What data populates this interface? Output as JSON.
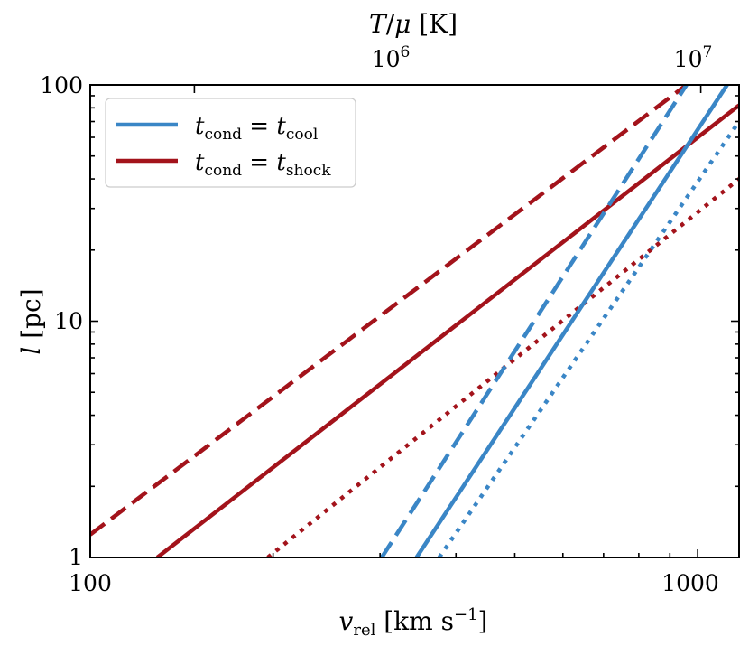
{
  "chart_data": {
    "type": "line",
    "xscale": "log",
    "yscale": "log",
    "xlim": [
      100,
      1170
    ],
    "ylim": [
      1,
      100
    ],
    "xlabel": "v_rel [km s^-1]",
    "ylabel": "l [pc]",
    "top_axis": {
      "label": "T/μ [K]",
      "ticks": [
        {
          "value": 1000000,
          "label": "10^6"
        },
        {
          "value": 10000000,
          "label": "10^7"
        }
      ],
      "tick_positions_vrel": [
        148.4,
        1012
      ]
    },
    "xticks": [
      {
        "value": 100,
        "label": "100"
      },
      {
        "value": 1000,
        "label": "1000"
      }
    ],
    "yticks": [
      {
        "value": 1,
        "label": "1"
      },
      {
        "value": 10,
        "label": "10"
      },
      {
        "value": 100,
        "label": "100"
      }
    ],
    "grid": false,
    "legend": {
      "position": "top-left",
      "entries": [
        {
          "label": "t_cond = t_cool",
          "color": "#3a86c6"
        },
        {
          "label": "t_cond = t_shock",
          "color": "#a3131b"
        }
      ]
    },
    "series": [
      {
        "group": "t_cond = t_shock",
        "color": "#a3131b",
        "style": "dashed",
        "x": [
          100,
          958.6
        ],
        "y": [
          1.25,
          100
        ]
      },
      {
        "group": "t_cond = t_shock",
        "color": "#a3131b",
        "style": "solid",
        "x": [
          128.9,
          1170
        ],
        "y": [
          1,
          82
        ]
      },
      {
        "group": "t_cond = t_shock",
        "color": "#a3131b",
        "style": "dotted",
        "x": [
          196.0,
          1170
        ],
        "y": [
          1,
          40
        ]
      },
      {
        "group": "t_cond = t_cool",
        "color": "#3a86c6",
        "style": "dashed",
        "x": [
          301.9,
          958.6
        ],
        "y": [
          1,
          100
        ]
      },
      {
        "group": "t_cond = t_cool",
        "color": "#3a86c6",
        "style": "solid",
        "x": [
          344.5,
          1118
        ],
        "y": [
          1,
          100
        ]
      },
      {
        "group": "t_cond = t_cool",
        "color": "#3a86c6",
        "style": "dotted",
        "x": [
          375.4,
          1170
        ],
        "y": [
          1,
          70
        ]
      }
    ]
  }
}
